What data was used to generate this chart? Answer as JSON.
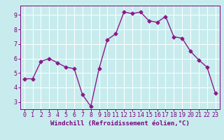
{
  "x": [
    0,
    1,
    2,
    3,
    4,
    5,
    6,
    7,
    8,
    9,
    10,
    11,
    12,
    13,
    14,
    15,
    16,
    17,
    18,
    19,
    20,
    21,
    22,
    23
  ],
  "y": [
    4.6,
    4.6,
    5.8,
    6.0,
    5.7,
    5.4,
    5.3,
    3.5,
    2.7,
    5.3,
    7.3,
    7.7,
    9.2,
    9.1,
    9.2,
    8.6,
    8.5,
    8.9,
    7.5,
    7.4,
    6.5,
    5.9,
    5.4,
    3.6
  ],
  "line_color": "#8b1a8b",
  "marker": "D",
  "marker_size": 2.5,
  "line_width": 1.0,
  "background_color": "#c8eced",
  "grid_color": "#ffffff",
  "xlabel": "Windchill (Refroidissement éolien,°C)",
  "xlabel_color": "#7a0080",
  "tick_color": "#7a0080",
  "ylim": [
    2.5,
    9.65
  ],
  "xlim": [
    -0.5,
    23.5
  ],
  "yticks": [
    3,
    4,
    5,
    6,
    7,
    8,
    9
  ],
  "xticks": [
    0,
    1,
    2,
    3,
    4,
    5,
    6,
    7,
    8,
    9,
    10,
    11,
    12,
    13,
    14,
    15,
    16,
    17,
    18,
    19,
    20,
    21,
    22,
    23
  ],
  "xlabel_fontsize": 6.5,
  "tick_fontsize": 6.0
}
